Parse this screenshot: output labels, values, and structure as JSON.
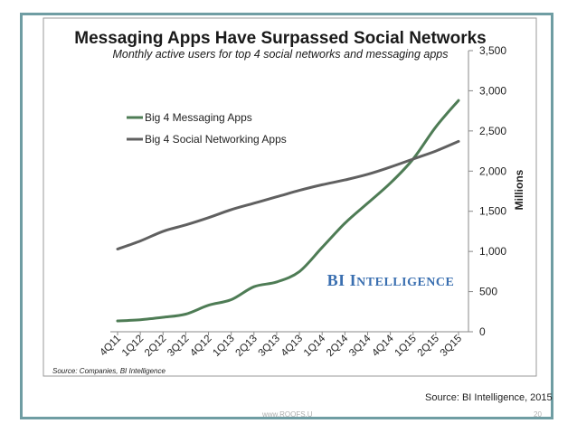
{
  "slide": {
    "source_caption": "Source: BI Intelligence, 2015",
    "footer_url": "www.ROOFS.U",
    "page_number": "20"
  },
  "chart_data": {
    "type": "line",
    "title": "Messaging Apps Have Surpassed Social Networks",
    "subtitle": "Monthly active users for top 4 social networks and messaging apps",
    "ylabel": "Millions",
    "xlabel": "",
    "ylim": [
      0,
      3500
    ],
    "yticks": [
      "0",
      "500",
      "1,000",
      "1,500",
      "2,000",
      "2,500",
      "3,000",
      "3,500"
    ],
    "ytick_values": [
      0,
      500,
      1000,
      1500,
      2000,
      2500,
      3000,
      3500
    ],
    "y_axis_side": "right",
    "grid": false,
    "legend_placement": "top-left",
    "brand": "BI Intelligence",
    "source_note": "Source: Companies, BI Intelligence",
    "categories": [
      "4Q11",
      "1Q12",
      "2Q12",
      "3Q12",
      "4Q12",
      "1Q13",
      "2Q13",
      "3Q13",
      "4Q13",
      "1Q14",
      "2Q14",
      "3Q14",
      "4Q14",
      "1Q15",
      "2Q15",
      "3Q15"
    ],
    "series": [
      {
        "name": "Big 4 Messaging Apps",
        "color": "#4e7c55",
        "values": [
          135,
          150,
          180,
          220,
          330,
          400,
          560,
          620,
          750,
          1050,
          1350,
          1600,
          1850,
          2150,
          2550,
          2880
        ]
      },
      {
        "name": "Big 4 Social Networking Apps",
        "color": "#606060",
        "values": [
          1030,
          1130,
          1250,
          1330,
          1420,
          1520,
          1600,
          1680,
          1760,
          1830,
          1890,
          1960,
          2050,
          2150,
          2250,
          2370
        ]
      }
    ]
  }
}
